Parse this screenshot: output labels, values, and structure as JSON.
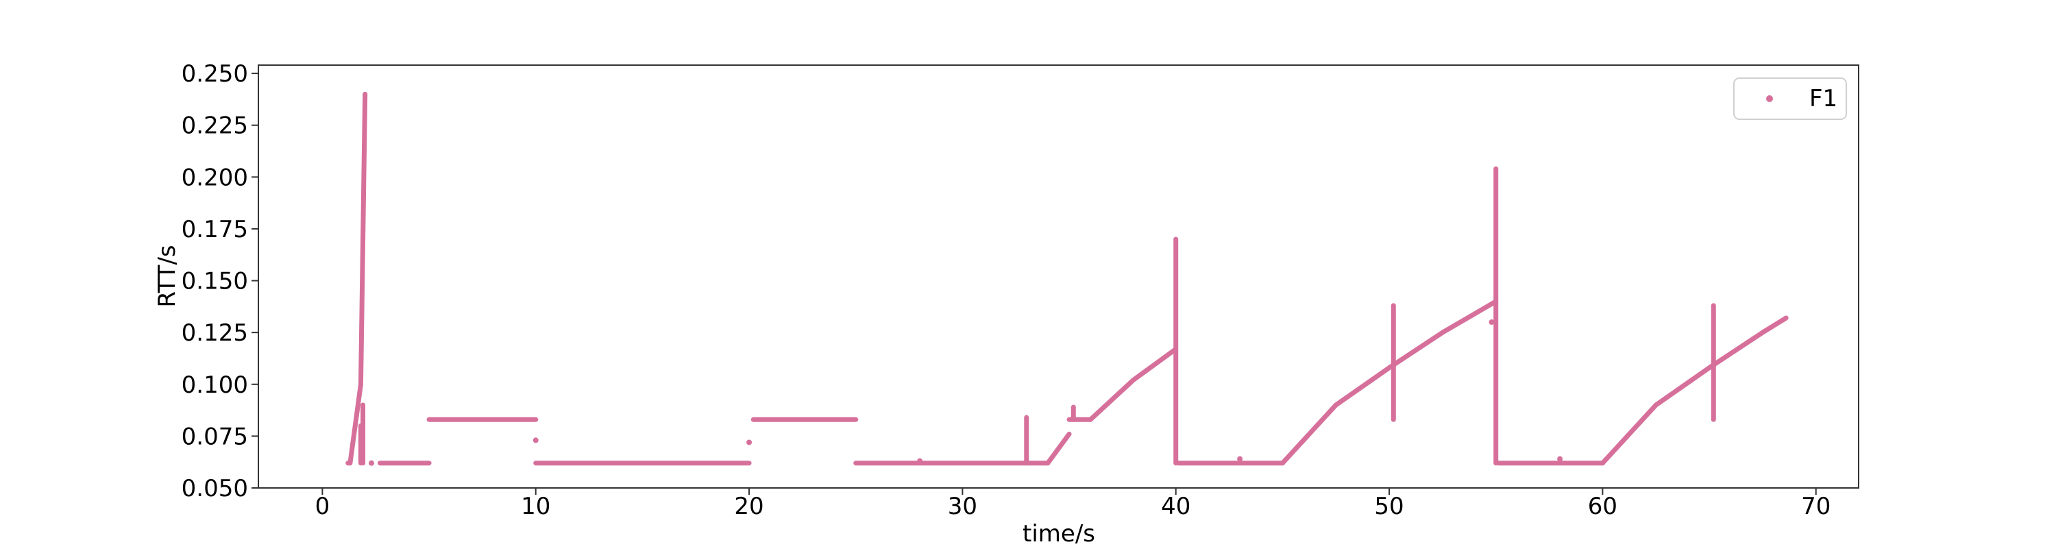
{
  "chart_data": {
    "type": "scatter",
    "title": "",
    "xlabel": "time/s",
    "ylabel": "RTT/s",
    "xlim": [
      -3,
      72
    ],
    "ylim": [
      0.05,
      0.254
    ],
    "x_ticks": [
      0,
      10,
      20,
      30,
      40,
      50,
      60,
      70
    ],
    "y_ticks": [
      0.05,
      0.075,
      0.1,
      0.125,
      0.15,
      0.175,
      0.2,
      0.225,
      0.25
    ],
    "x_tick_labels": [
      "0",
      "10",
      "20",
      "30",
      "40",
      "50",
      "60",
      "70"
    ],
    "y_tick_labels": [
      "0.050",
      "0.075",
      "0.100",
      "0.125",
      "0.150",
      "0.175",
      "0.200",
      "0.225",
      "0.250"
    ],
    "grid": false,
    "legend_position": "top-right",
    "series": [
      {
        "name": "F1",
        "color": "#d6709b",
        "segments": [
          {
            "kind": "line",
            "x": [
              1.2,
              1.3
            ],
            "y": [
              0.062,
              0.062
            ]
          },
          {
            "kind": "line",
            "x": [
              1.3,
              1.8,
              2.0
            ],
            "y": [
              0.062,
              0.1,
              0.24
            ]
          },
          {
            "kind": "line",
            "x": [
              2.7,
              5.0
            ],
            "y": [
              0.062,
              0.062
            ]
          },
          {
            "kind": "line",
            "x": [
              5.0,
              10.0
            ],
            "y": [
              0.083,
              0.083
            ]
          },
          {
            "kind": "line",
            "x": [
              10.0,
              20.0
            ],
            "y": [
              0.062,
              0.062
            ]
          },
          {
            "kind": "line",
            "x": [
              20.2,
              25.0
            ],
            "y": [
              0.083,
              0.083
            ]
          },
          {
            "kind": "line",
            "x": [
              25.0,
              33.0
            ],
            "y": [
              0.062,
              0.062
            ]
          },
          {
            "kind": "line",
            "x": [
              33.0,
              34.0
            ],
            "y": [
              0.062,
              0.062
            ]
          },
          {
            "kind": "line",
            "x": [
              34.0,
              35.0
            ],
            "y": [
              0.062,
              0.076
            ]
          },
          {
            "kind": "line",
            "x": [
              35.0,
              36.0
            ],
            "y": [
              0.083,
              0.083
            ]
          },
          {
            "kind": "line",
            "x": [
              36.0,
              38.0,
              40.0
            ],
            "y": [
              0.083,
              0.102,
              0.117
            ]
          },
          {
            "kind": "line",
            "x": [
              40.1,
              45.0
            ],
            "y": [
              0.062,
              0.062
            ]
          },
          {
            "kind": "line",
            "x": [
              45.0,
              47.5,
              50.0,
              52.5,
              55.0
            ],
            "y": [
              0.062,
              0.09,
              0.108,
              0.125,
              0.14
            ]
          },
          {
            "kind": "line",
            "x": [
              55.1,
              60.0
            ],
            "y": [
              0.062,
              0.062
            ]
          },
          {
            "kind": "line",
            "x": [
              60.0,
              62.5,
              65.0,
              67.5,
              68.6
            ],
            "y": [
              0.062,
              0.09,
              0.108,
              0.125,
              0.132
            ]
          },
          {
            "kind": "vline",
            "x": 1.8,
            "y": [
              0.062,
              0.08
            ]
          },
          {
            "kind": "vline",
            "x": 1.9,
            "y": [
              0.062,
              0.09
            ]
          },
          {
            "kind": "vline",
            "x": 33.0,
            "y": [
              0.062,
              0.084
            ]
          },
          {
            "kind": "vline",
            "x": 35.2,
            "y": [
              0.083,
              0.089
            ]
          },
          {
            "kind": "vline",
            "x": 40.0,
            "y": [
              0.062,
              0.17
            ]
          },
          {
            "kind": "vline",
            "x": 50.2,
            "y": [
              0.083,
              0.138
            ]
          },
          {
            "kind": "vline",
            "x": 55.0,
            "y": [
              0.062,
              0.204
            ]
          },
          {
            "kind": "vline",
            "x": 65.2,
            "y": [
              0.083,
              0.138
            ]
          }
        ],
        "points": [
          {
            "x": 2.3,
            "y": 0.062
          },
          {
            "x": 10.0,
            "y": 0.073
          },
          {
            "x": 20.0,
            "y": 0.072
          },
          {
            "x": 28.0,
            "y": 0.063
          },
          {
            "x": 43.0,
            "y": 0.064
          },
          {
            "x": 54.8,
            "y": 0.13
          },
          {
            "x": 58.0,
            "y": 0.064
          }
        ]
      }
    ]
  }
}
